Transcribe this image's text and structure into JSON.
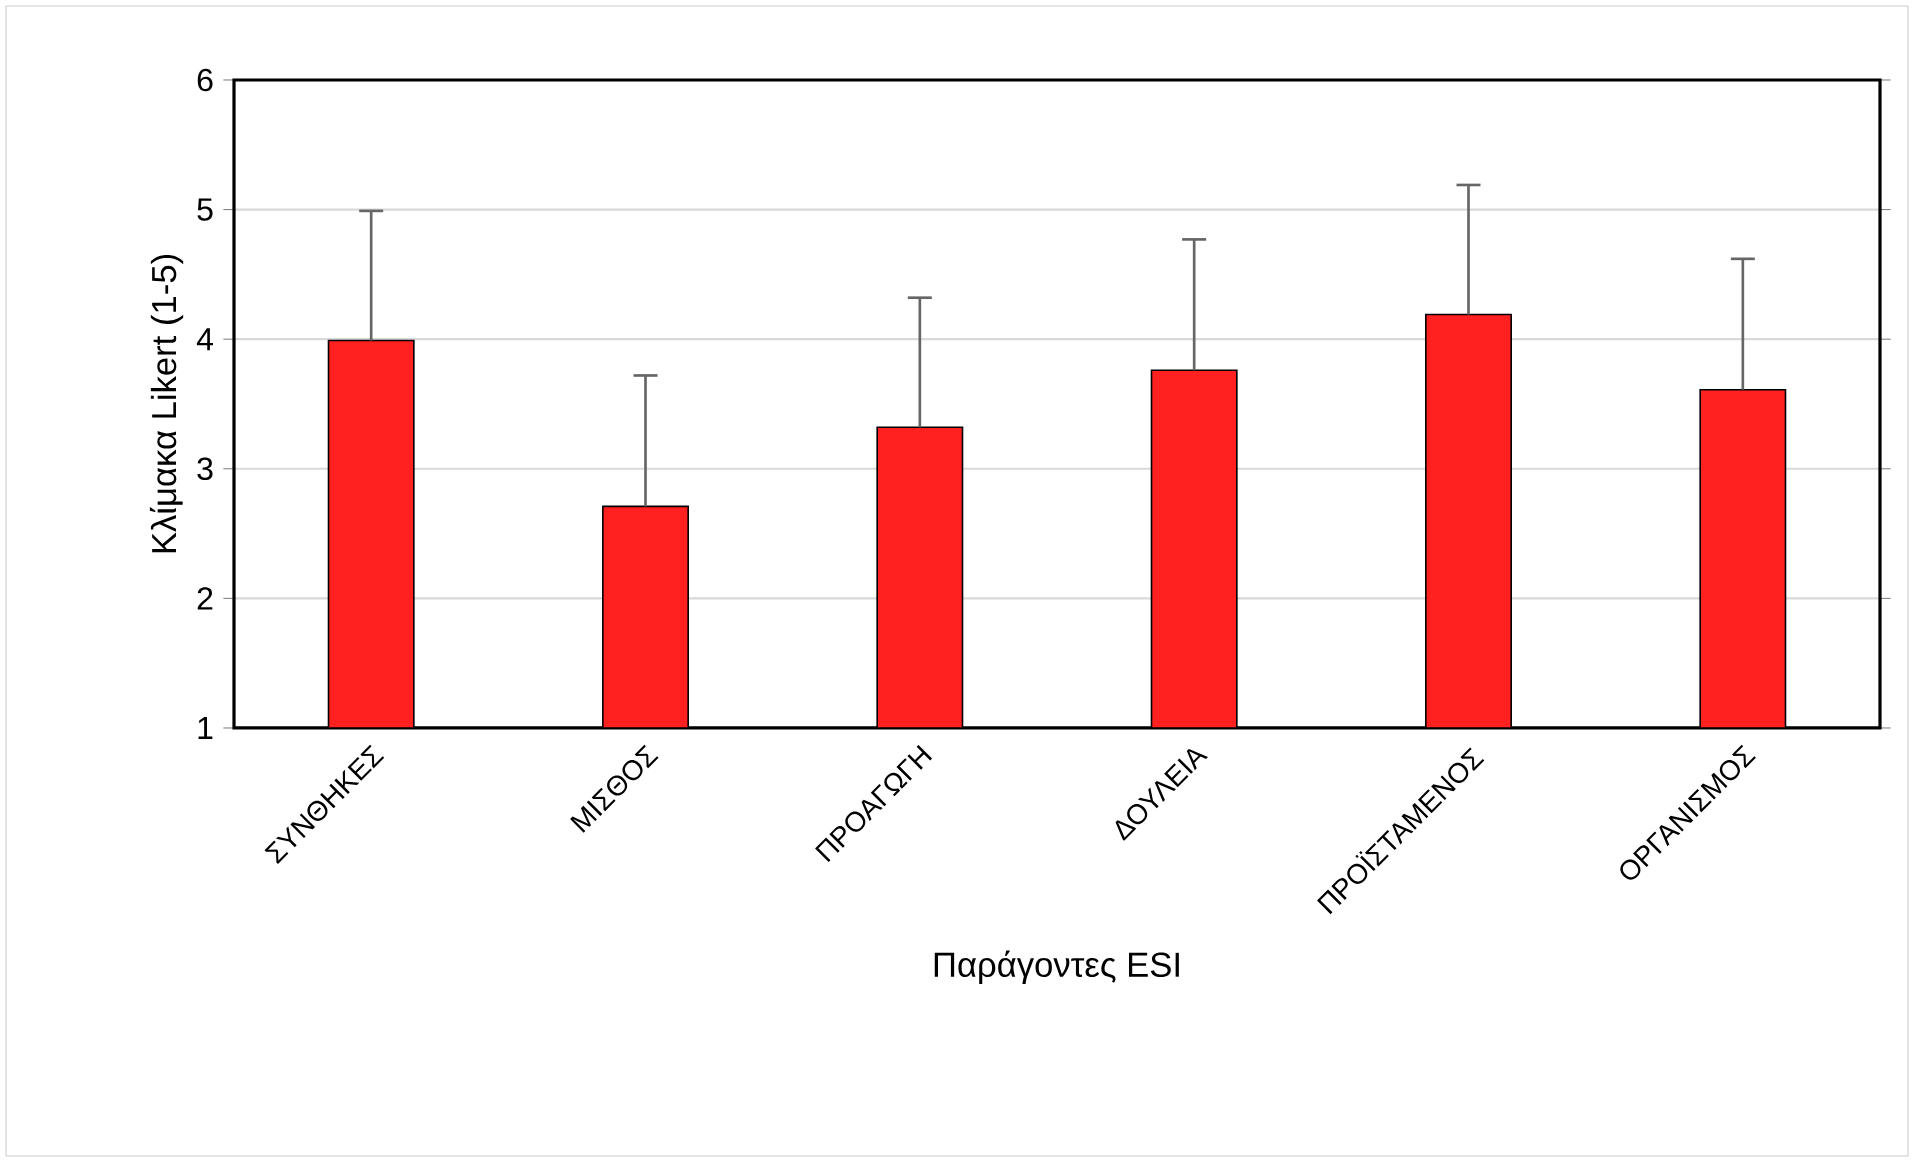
{
  "chart_data": {
    "type": "bar",
    "xlabel": "Παράγοντες ESI",
    "ylabel": "Κλίμακα Likert (1-5)",
    "categories": [
      "ΣΥΝΘΗΚΕΣ",
      "ΜΙΣΘΟΣ",
      "ΠΡΟΑΓΩΓΗ",
      "ΔΟΥΛΕΙΑ",
      "ΠΡΟΪΣΤΑΜΕΝΟΣ",
      "ΟΡΓΑΝΙΣΜΟΣ"
    ],
    "values": [
      3.99,
      2.71,
      3.32,
      3.76,
      4.19,
      3.61
    ],
    "errors": [
      [
        3.99,
        4.99
      ],
      [
        2.71,
        3.72
      ],
      [
        3.32,
        4.32
      ],
      [
        3.76,
        4.77
      ],
      [
        4.19,
        5.19
      ],
      [
        3.61,
        4.62
      ]
    ],
    "color": "#ff2020",
    "ylim": [
      1,
      6
    ],
    "yticks": [
      1,
      2,
      3,
      4,
      5,
      6
    ],
    "grid": "y"
  }
}
